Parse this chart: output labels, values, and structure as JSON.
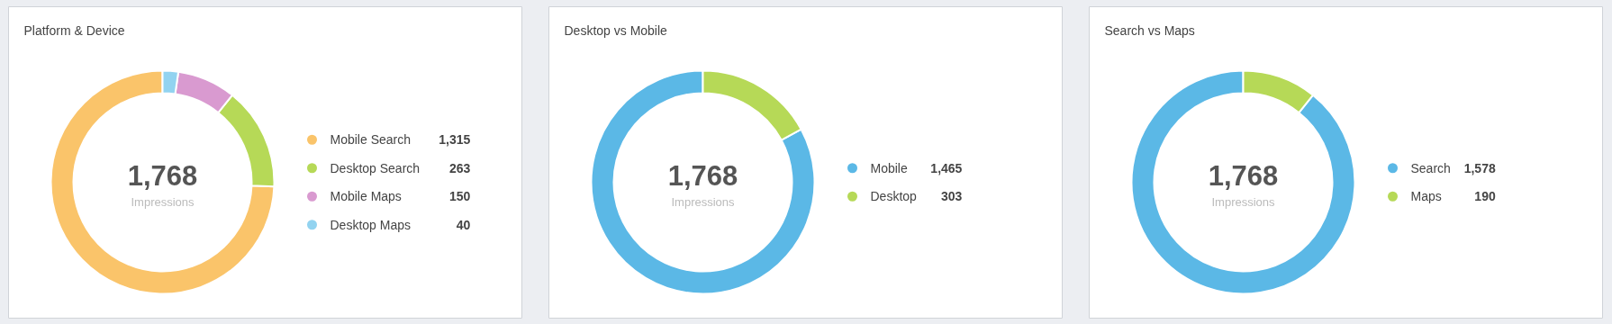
{
  "chart_data": [
    {
      "type": "donut",
      "title": "Platform & Device",
      "categories": [
        "Mobile Search",
        "Desktop Search",
        "Mobile Maps",
        "Desktop Maps"
      ],
      "values": [
        1315,
        263,
        150,
        40
      ],
      "value_labels": [
        "1,315",
        "263",
        "150",
        "40"
      ],
      "colors": [
        "#fac46a",
        "#b6d957",
        "#d99ad0",
        "#92d3f0"
      ],
      "legend": "right",
      "annotations": [
        "1,768",
        "Impressions"
      ]
    },
    {
      "type": "donut",
      "title": "Desktop vs Mobile",
      "categories": [
        "Mobile",
        "Desktop"
      ],
      "values": [
        1465,
        303
      ],
      "value_labels": [
        "1,465",
        "303"
      ],
      "colors": [
        "#5bb8e6",
        "#b6d957"
      ],
      "legend": "right",
      "annotations": [
        "1,768",
        "Impressions"
      ]
    },
    {
      "type": "donut",
      "title": "Search vs Maps",
      "categories": [
        "Search",
        "Maps"
      ],
      "values": [
        1578,
        190
      ],
      "value_labels": [
        "1,578",
        "190"
      ],
      "colors": [
        "#5bb8e6",
        "#b6d957"
      ],
      "legend": "right",
      "annotations": [
        "1,768",
        "Impressions"
      ]
    }
  ]
}
